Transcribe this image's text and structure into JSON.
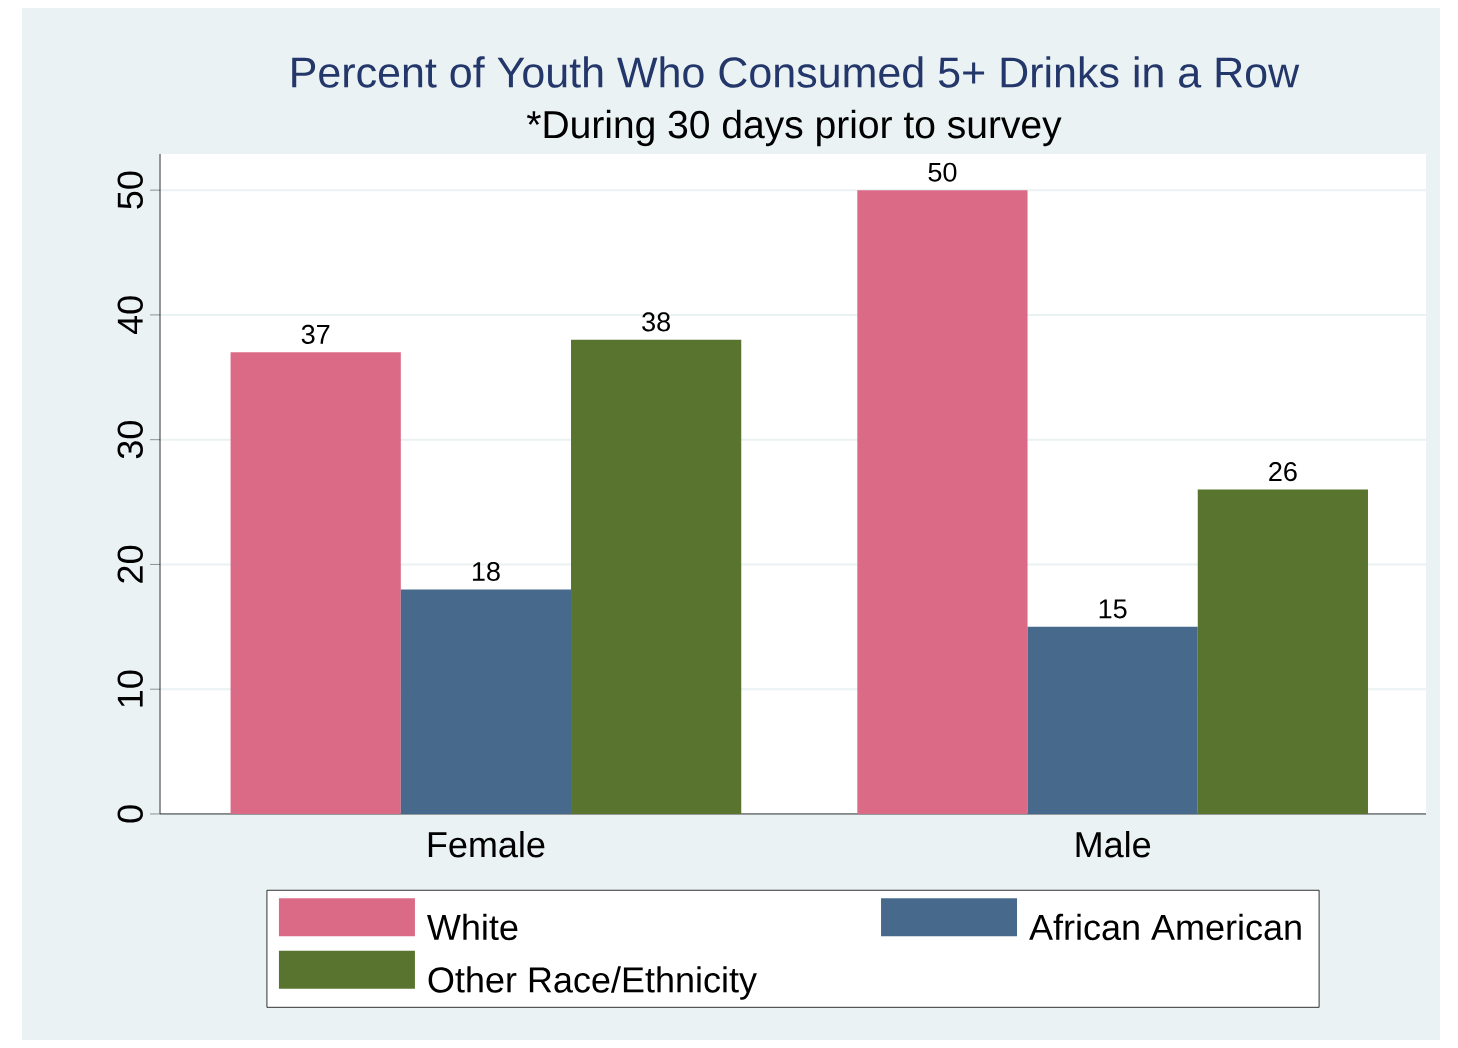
{
  "chart_data": {
    "type": "bar",
    "title": "Percent of Youth Who Consumed 5+ Drinks in a Row",
    "subtitle": "*During 30 days prior to survey",
    "categories": [
      "Female",
      "Male"
    ],
    "series": [
      {
        "name": "White",
        "color": "#da6a86",
        "values": [
          37,
          50
        ]
      },
      {
        "name": "African American",
        "color": "#476a8c",
        "values": [
          18,
          15
        ]
      },
      {
        "name": "Other Race/Ethnicity",
        "color": "#58742f",
        "values": [
          38,
          26
        ]
      }
    ],
    "ylim": [
      0,
      52.9
    ],
    "yticks": [
      0,
      10,
      20,
      30,
      40,
      50
    ],
    "grid": "y",
    "legend": "bottom",
    "data_labels": true
  }
}
